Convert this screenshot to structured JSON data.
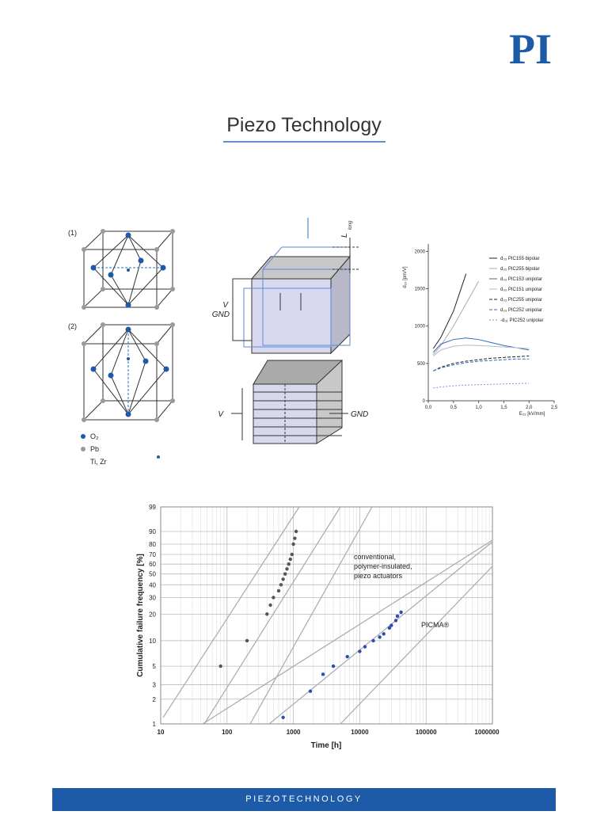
{
  "header": {
    "logo": "PI",
    "title": "Piezo Technology"
  },
  "lattice": {
    "labels": [
      "(1)",
      "(2)"
    ],
    "legend": [
      "O₂",
      "Pb",
      "Ti, Zr"
    ]
  },
  "actuator": {
    "top": {
      "voltage": "V",
      "ground": "GND",
      "length": "L",
      "length_sub": "long"
    },
    "stack": {
      "voltage": "V",
      "ground": "GND"
    }
  },
  "polarization_chart": {
    "type": "line",
    "x_label": "E₃₃ [kV/mm]",
    "y_label": "d₃₃ [pm/V]",
    "x": [
      0.1,
      0.25,
      0.5,
      0.75,
      1.0,
      1.25,
      1.5,
      1.75,
      2.0
    ],
    "xlim": [
      0,
      2.5
    ],
    "xticks": [
      {
        "value": 0,
        "label": "0,0"
      },
      {
        "value": 0.5,
        "label": "0,5"
      },
      {
        "value": 1,
        "label": "1,0"
      },
      {
        "value": 1.5,
        "label": "1,5"
      },
      {
        "value": 2,
        "label": "2,0"
      },
      {
        "value": 2.5,
        "label": "2,5"
      }
    ],
    "ylim": [
      0,
      2100
    ],
    "yticks": [
      0,
      500,
      1000,
      1500,
      2000
    ],
    "series": [
      {
        "name": "d₃₃ PIC155 bipolar",
        "color": "#222222",
        "style": "solid",
        "values": [
          700,
          850,
          1200,
          1700,
          null,
          null,
          null,
          null,
          null
        ]
      },
      {
        "name": "d₃₃ PIC255 bipolar",
        "color": "#aaaaaa",
        "style": "solid",
        "values": [
          620,
          740,
          1000,
          1300,
          1600,
          null,
          null,
          null,
          null
        ]
      },
      {
        "name": "d₃₃ PIC153 unipolar",
        "color": "#2a6cc0",
        "style": "solid",
        "values": [
          650,
          760,
          820,
          840,
          820,
          780,
          740,
          710,
          680
        ]
      },
      {
        "name": "d₃₃ PIC151 unipolar",
        "color": "#b8b8c8",
        "style": "solid",
        "values": [
          600,
          680,
          730,
          745,
          740,
          730,
          720,
          710,
          700
        ]
      },
      {
        "name": "d₃₃ PIC255 unipolar",
        "color": "#222222",
        "style": "dashed",
        "values": [
          400,
          450,
          500,
          530,
          550,
          570,
          580,
          590,
          600
        ]
      },
      {
        "name": "d₃₃ PIC252 unipolar",
        "color": "#2a6cc0",
        "style": "dashed",
        "values": [
          400,
          440,
          480,
          510,
          530,
          540,
          550,
          560,
          560
        ]
      },
      {
        "name": "-d₃₁ PIC252 unipolar",
        "color": "#6a9ad8",
        "style": "dotted",
        "values": [
          170,
          185,
          200,
          210,
          215,
          220,
          225,
          230,
          235
        ]
      }
    ]
  },
  "reliability_chart": {
    "type": "scatter",
    "x_label": "Time [h]",
    "y_label": "Cumulative failure frequency [%]",
    "log_x": true,
    "y_scale": "weibull",
    "grid": true,
    "xlim": [
      10,
      1000000
    ],
    "xticks": [
      10,
      100,
      1000,
      10000,
      100000,
      1000000
    ],
    "ylim": [
      1,
      99
    ],
    "yticks": [
      1,
      2,
      3,
      5,
      10,
      20,
      30,
      40,
      50,
      60,
      70,
      80,
      90,
      99
    ],
    "annotations": {
      "conventional": [
        "conventional,",
        "polymer-insulated,",
        "piezo actuators"
      ],
      "picma": "PICMA®"
    },
    "series": [
      {
        "color": "#555555",
        "x": [
          80,
          200,
          400,
          450,
          500,
          600,
          650,
          700,
          750,
          800,
          850,
          900,
          950,
          1000,
          1050,
          1100
        ],
        "values": [
          5,
          10,
          20,
          25,
          30,
          35,
          40,
          45,
          50,
          55,
          60,
          65,
          70,
          80,
          85,
          90
        ]
      },
      {
        "color": "#2a4fb0",
        "x": [
          700,
          1800,
          2800,
          4000,
          6500,
          10000,
          12000,
          16000,
          20000,
          23000,
          28000,
          30000,
          35000,
          37000,
          42000
        ],
        "values": [
          1.2,
          2.5,
          4,
          5,
          6.5,
          7.5,
          8.5,
          10,
          11,
          12,
          14,
          15,
          17,
          19,
          21
        ]
      }
    ]
  },
  "footer": {
    "text": "PIEZOTECHNOLOGY"
  }
}
